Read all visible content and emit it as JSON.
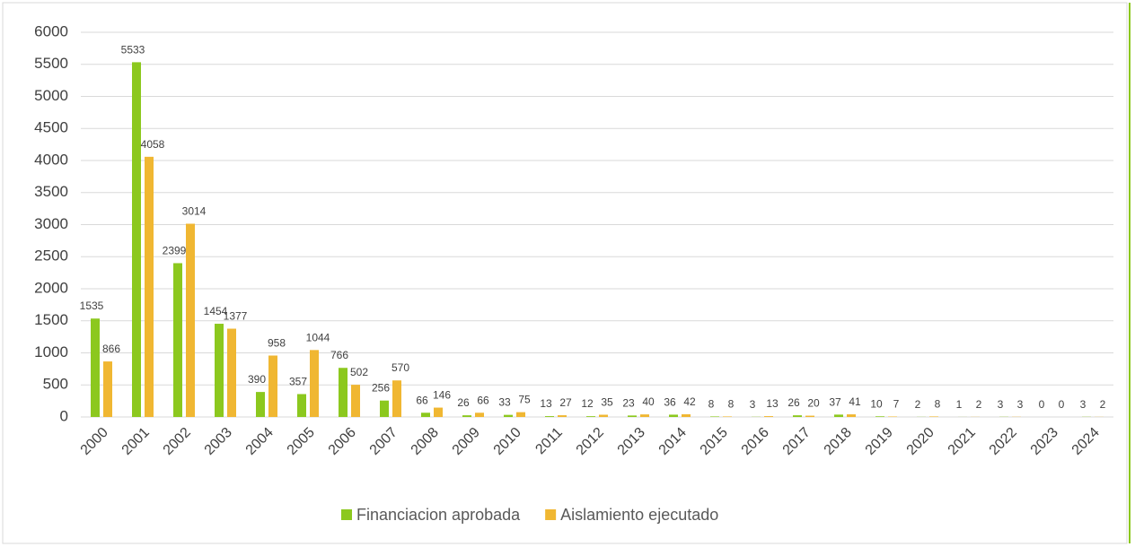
{
  "chart_data": {
    "type": "bar",
    "categories": [
      "2000",
      "2001",
      "2002",
      "2003",
      "2004",
      "2005",
      "2006",
      "2007",
      "2008",
      "2009",
      "2010",
      "2011",
      "2012",
      "2013",
      "2014",
      "2015",
      "2016",
      "2017",
      "2018",
      "2019",
      "2020",
      "2021",
      "2022",
      "2023",
      "2024"
    ],
    "series": [
      {
        "name": "Financiacion aprobada",
        "color": "#8cc81e",
        "values": [
          1535,
          5533,
          2399,
          1454,
          390,
          357,
          766,
          256,
          66,
          26,
          33,
          13,
          12,
          23,
          36,
          8,
          3,
          26,
          37,
          10,
          2,
          1,
          3,
          0,
          3
        ]
      },
      {
        "name": "Aislamiento ejecutado",
        "color": "#f0b732",
        "values": [
          866,
          4058,
          3014,
          1377,
          958,
          1044,
          502,
          570,
          146,
          66,
          75,
          27,
          35,
          40,
          42,
          8,
          13,
          20,
          41,
          7,
          8,
          2,
          3,
          0,
          2
        ]
      }
    ],
    "ylim": [
      0,
      6000
    ],
    "yticks": [
      0,
      500,
      1000,
      1500,
      2000,
      2500,
      3000,
      3500,
      4000,
      4500,
      5000,
      5500,
      6000
    ],
    "grid": true,
    "legend": "bottom"
  }
}
